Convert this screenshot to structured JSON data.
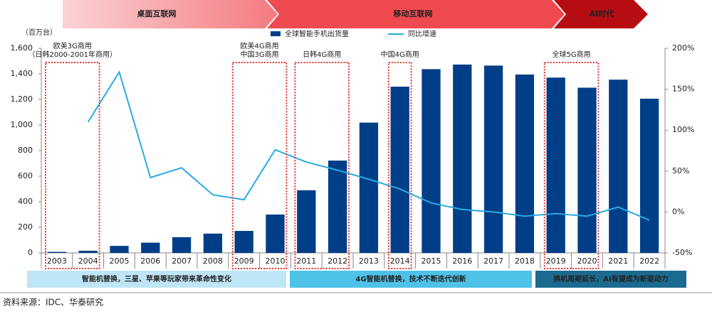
{
  "chart_data": {
    "type": "bar",
    "y_label": "（百万台）",
    "phases": [
      "桌面互联网",
      "移动互联网",
      "AI时代"
    ],
    "categories": [
      "2003",
      "2004",
      "2005",
      "2006",
      "2007",
      "2008",
      "2009",
      "2010",
      "2011",
      "2012",
      "2013",
      "2014",
      "2015",
      "2016",
      "2017",
      "2018",
      "2019",
      "2020",
      "2021",
      "2022"
    ],
    "series": [
      {
        "name": "全球智能手机出货量",
        "type": "bar",
        "color": "#003f87",
        "values": [
          8,
          17,
          55,
          80,
          123,
          151,
          172,
          300,
          490,
          722,
          1019,
          1300,
          1437,
          1473,
          1465,
          1395,
          1371,
          1292,
          1355,
          1206
        ]
      },
      {
        "name": "同比增速",
        "type": "line",
        "axis": "y2",
        "color": "#29abe2",
        "values": [
          null,
          110,
          171,
          42,
          54,
          21,
          15,
          76,
          61,
          51,
          40,
          28,
          11,
          3,
          0,
          -5,
          -2,
          -5,
          6,
          -10
        ]
      }
    ],
    "ylim": [
      0,
      1600
    ],
    "yticks": [
      0,
      200,
      400,
      600,
      800,
      {
        "value": 1000,
        "label": "1,000"
      },
      {
        "value": 1200,
        "label": "1,200"
      },
      {
        "value": 1400,
        "label": "1,400"
      },
      {
        "value": 1600,
        "label": "1,600"
      }
    ],
    "y2lim": [
      -50,
      200
    ],
    "y2ticks": [
      {
        "value": -50,
        "label": "-50%"
      },
      {
        "value": 0,
        "label": "0%"
      },
      {
        "value": 50,
        "label": "50%"
      },
      {
        "value": 100,
        "label": "100%"
      },
      {
        "value": 150,
        "label": "150%"
      },
      {
        "value": 200,
        "label": "200%"
      }
    ],
    "annotations": [
      {
        "lines": [
          "欧美3G商用",
          "（日韩2000-2001年商用）"
        ]
      },
      {
        "lines": [
          "欧美4G商用",
          "中国3G商用"
        ]
      },
      {
        "lines": [
          "日韩4G商用"
        ]
      },
      {
        "lines": [
          "中国4G商用"
        ]
      },
      {
        "lines": [
          "全球5G商用"
        ]
      }
    ],
    "bottom_notes": [
      "智能机替换，三星、苹果等玩家带来革命性变化",
      "4G智能机替换，技术不断迭代创新",
      "换机周期延长，AI有望成为新驱动力"
    ]
  },
  "source": "资料来源：IDC、华泰研究"
}
